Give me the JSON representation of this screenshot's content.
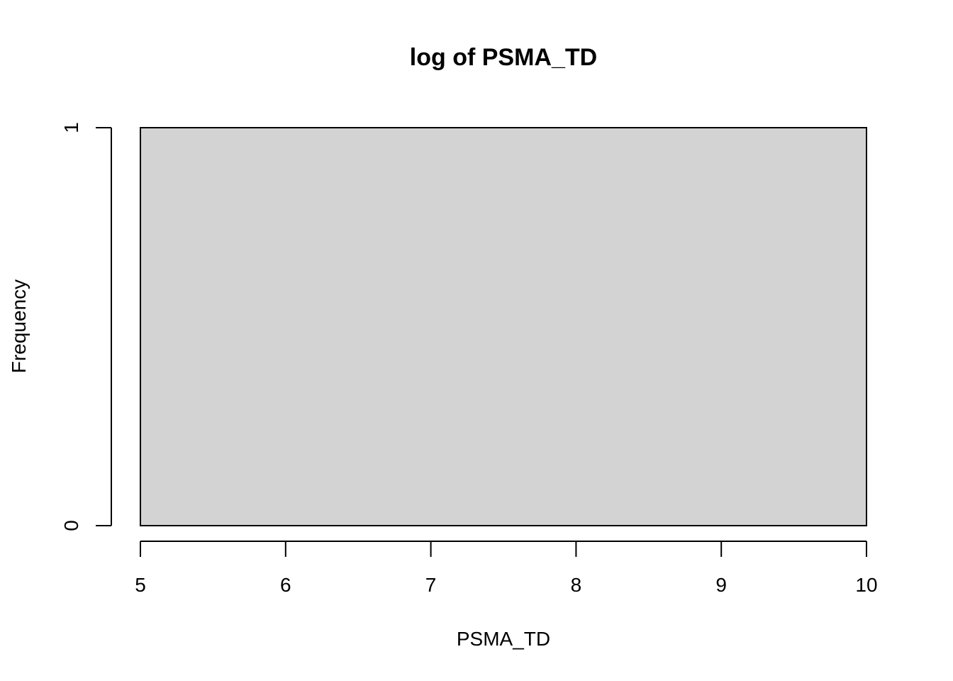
{
  "chart_data": {
    "type": "bar",
    "title": "log of PSMA_TD",
    "xlabel": "PSMA_TD",
    "ylabel": "Frequency",
    "xlim": [
      5,
      10
    ],
    "ylim": [
      0,
      1
    ],
    "x_ticks": [
      "5",
      "6",
      "7",
      "8",
      "9",
      "10"
    ],
    "y_ticks": [
      "0",
      "1"
    ],
    "bins": [
      {
        "x_start": 5,
        "x_end": 10,
        "count": 1
      }
    ],
    "bar_fill": "#d3d3d3",
    "grid": false,
    "legend": "none"
  }
}
